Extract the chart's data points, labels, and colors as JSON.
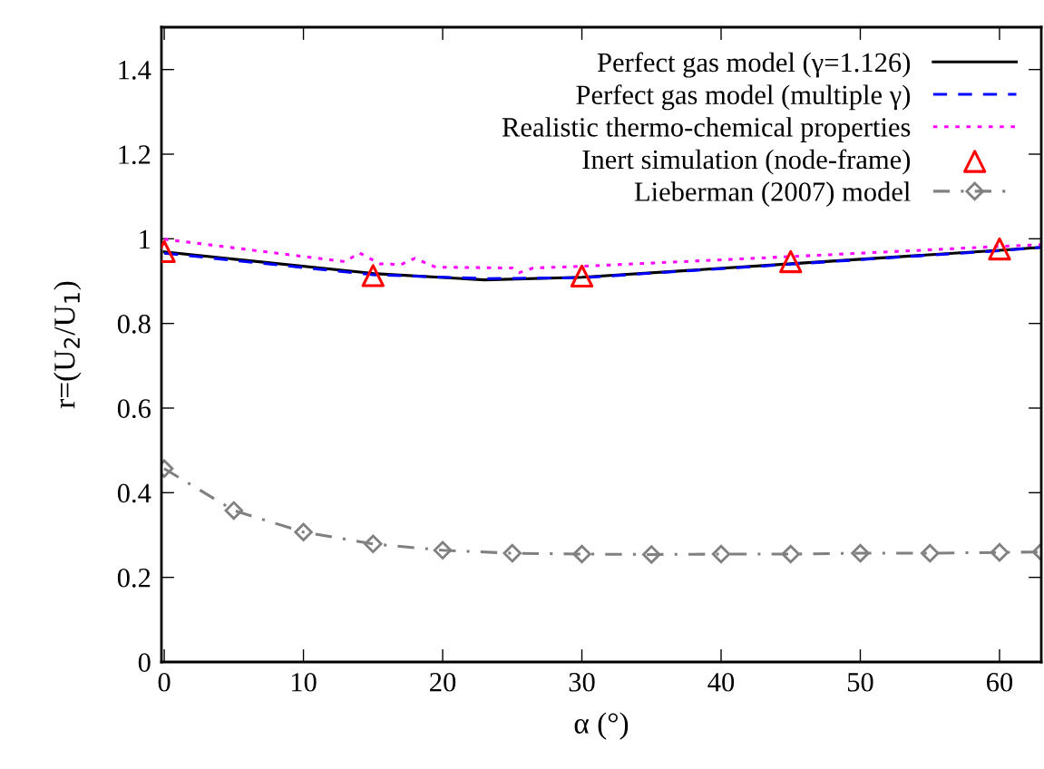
{
  "chart_data": {
    "type": "line",
    "xlabel": "α (°)",
    "ylabel": "r=(U$_{2}$/U$_{1}$)",
    "xlim": [
      -0.2,
      63
    ],
    "ylim": [
      0,
      1.5
    ],
    "xticks": [
      0,
      10,
      20,
      30,
      40,
      50,
      60
    ],
    "yticks": [
      0,
      0.2,
      0.4,
      0.6,
      0.8,
      {
        "value": 1,
        "label": "1"
      },
      1.2,
      1.4
    ],
    "grid": false,
    "legend": "top right",
    "series": [
      {
        "name": "Perfect gas model (γ=1.126)",
        "color": "#000000",
        "line_style": "solid",
        "marker": "none",
        "x": [
          0,
          15,
          23,
          30,
          45,
          60,
          63
        ],
        "values": [
          0.969,
          0.918,
          0.903,
          0.909,
          0.941,
          0.973,
          0.98
        ]
      },
      {
        "name": "Perfect gas model (multiple γ)",
        "color": "#0000ff",
        "line_style": "dashed",
        "marker": "none",
        "x": [
          0,
          15,
          23,
          30,
          45,
          60,
          63
        ],
        "values": [
          0.966,
          0.915,
          0.906,
          0.908,
          0.94,
          0.972,
          0.98
        ]
      },
      {
        "name": "Realistic thermo-chemical properties",
        "color": "#ff00ff",
        "line_style": "dotted",
        "marker": "none",
        "x": [
          0,
          13,
          14,
          15.5,
          17,
          18,
          19.5,
          25,
          25.5,
          26.5,
          30,
          45,
          60,
          63
        ],
        "values": [
          0.999,
          0.946,
          0.967,
          0.941,
          0.939,
          0.954,
          0.933,
          0.931,
          0.92,
          0.931,
          0.935,
          0.958,
          0.982,
          0.986
        ]
      },
      {
        "name": "Inert simulation (node-frame)",
        "color": "#ff0000",
        "type": "scatter",
        "marker": "triangle",
        "x": [
          0,
          15,
          30,
          45,
          60
        ],
        "values": [
          0.97,
          0.913,
          0.912,
          0.946,
          0.976
        ]
      },
      {
        "name": "Lieberman (2007) model",
        "color": "#808080",
        "line_style": "dashdot",
        "marker": "diamond",
        "x": [
          0,
          5,
          10,
          15,
          20,
          25,
          30,
          35,
          40,
          45,
          50,
          55,
          60,
          63
        ],
        "values": [
          0.457,
          0.358,
          0.307,
          0.279,
          0.264,
          0.257,
          0.255,
          0.254,
          0.255,
          0.255,
          0.257,
          0.257,
          0.259,
          0.26
        ]
      }
    ]
  }
}
